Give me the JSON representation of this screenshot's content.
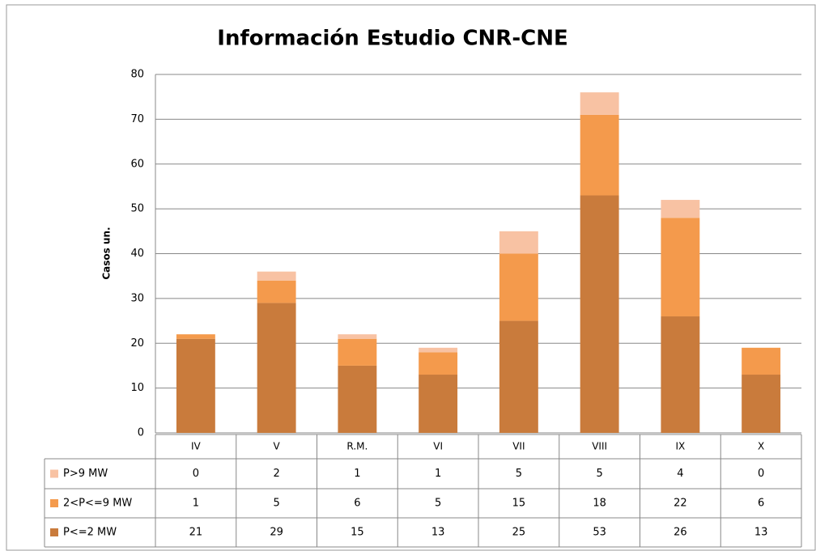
{
  "chart_data": {
    "type": "stacked_bar",
    "title": "Información Estudio CNR-CNE",
    "y_label": "Casos un.",
    "categories": [
      "IV",
      "V",
      "R.M.",
      "VI",
      "VII",
      "VIII",
      "IX",
      "X"
    ],
    "series": [
      {
        "name": "P<=2 MW",
        "color": "#c97b3c",
        "values": [
          21,
          29,
          15,
          13,
          25,
          53,
          26,
          13
        ]
      },
      {
        "name": "2<P<=9 MW",
        "color": "#f49a4c",
        "values": [
          1,
          5,
          6,
          5,
          15,
          18,
          22,
          6
        ]
      },
      {
        "name": "P>9 MW",
        "color": "#f8c2a3",
        "values": [
          0,
          2,
          1,
          1,
          5,
          5,
          4,
          0
        ]
      }
    ],
    "ylim": [
      0,
      80
    ],
    "yticks": [
      0,
      10,
      20,
      30,
      40,
      50,
      60,
      70,
      80
    ],
    "grid": true
  }
}
